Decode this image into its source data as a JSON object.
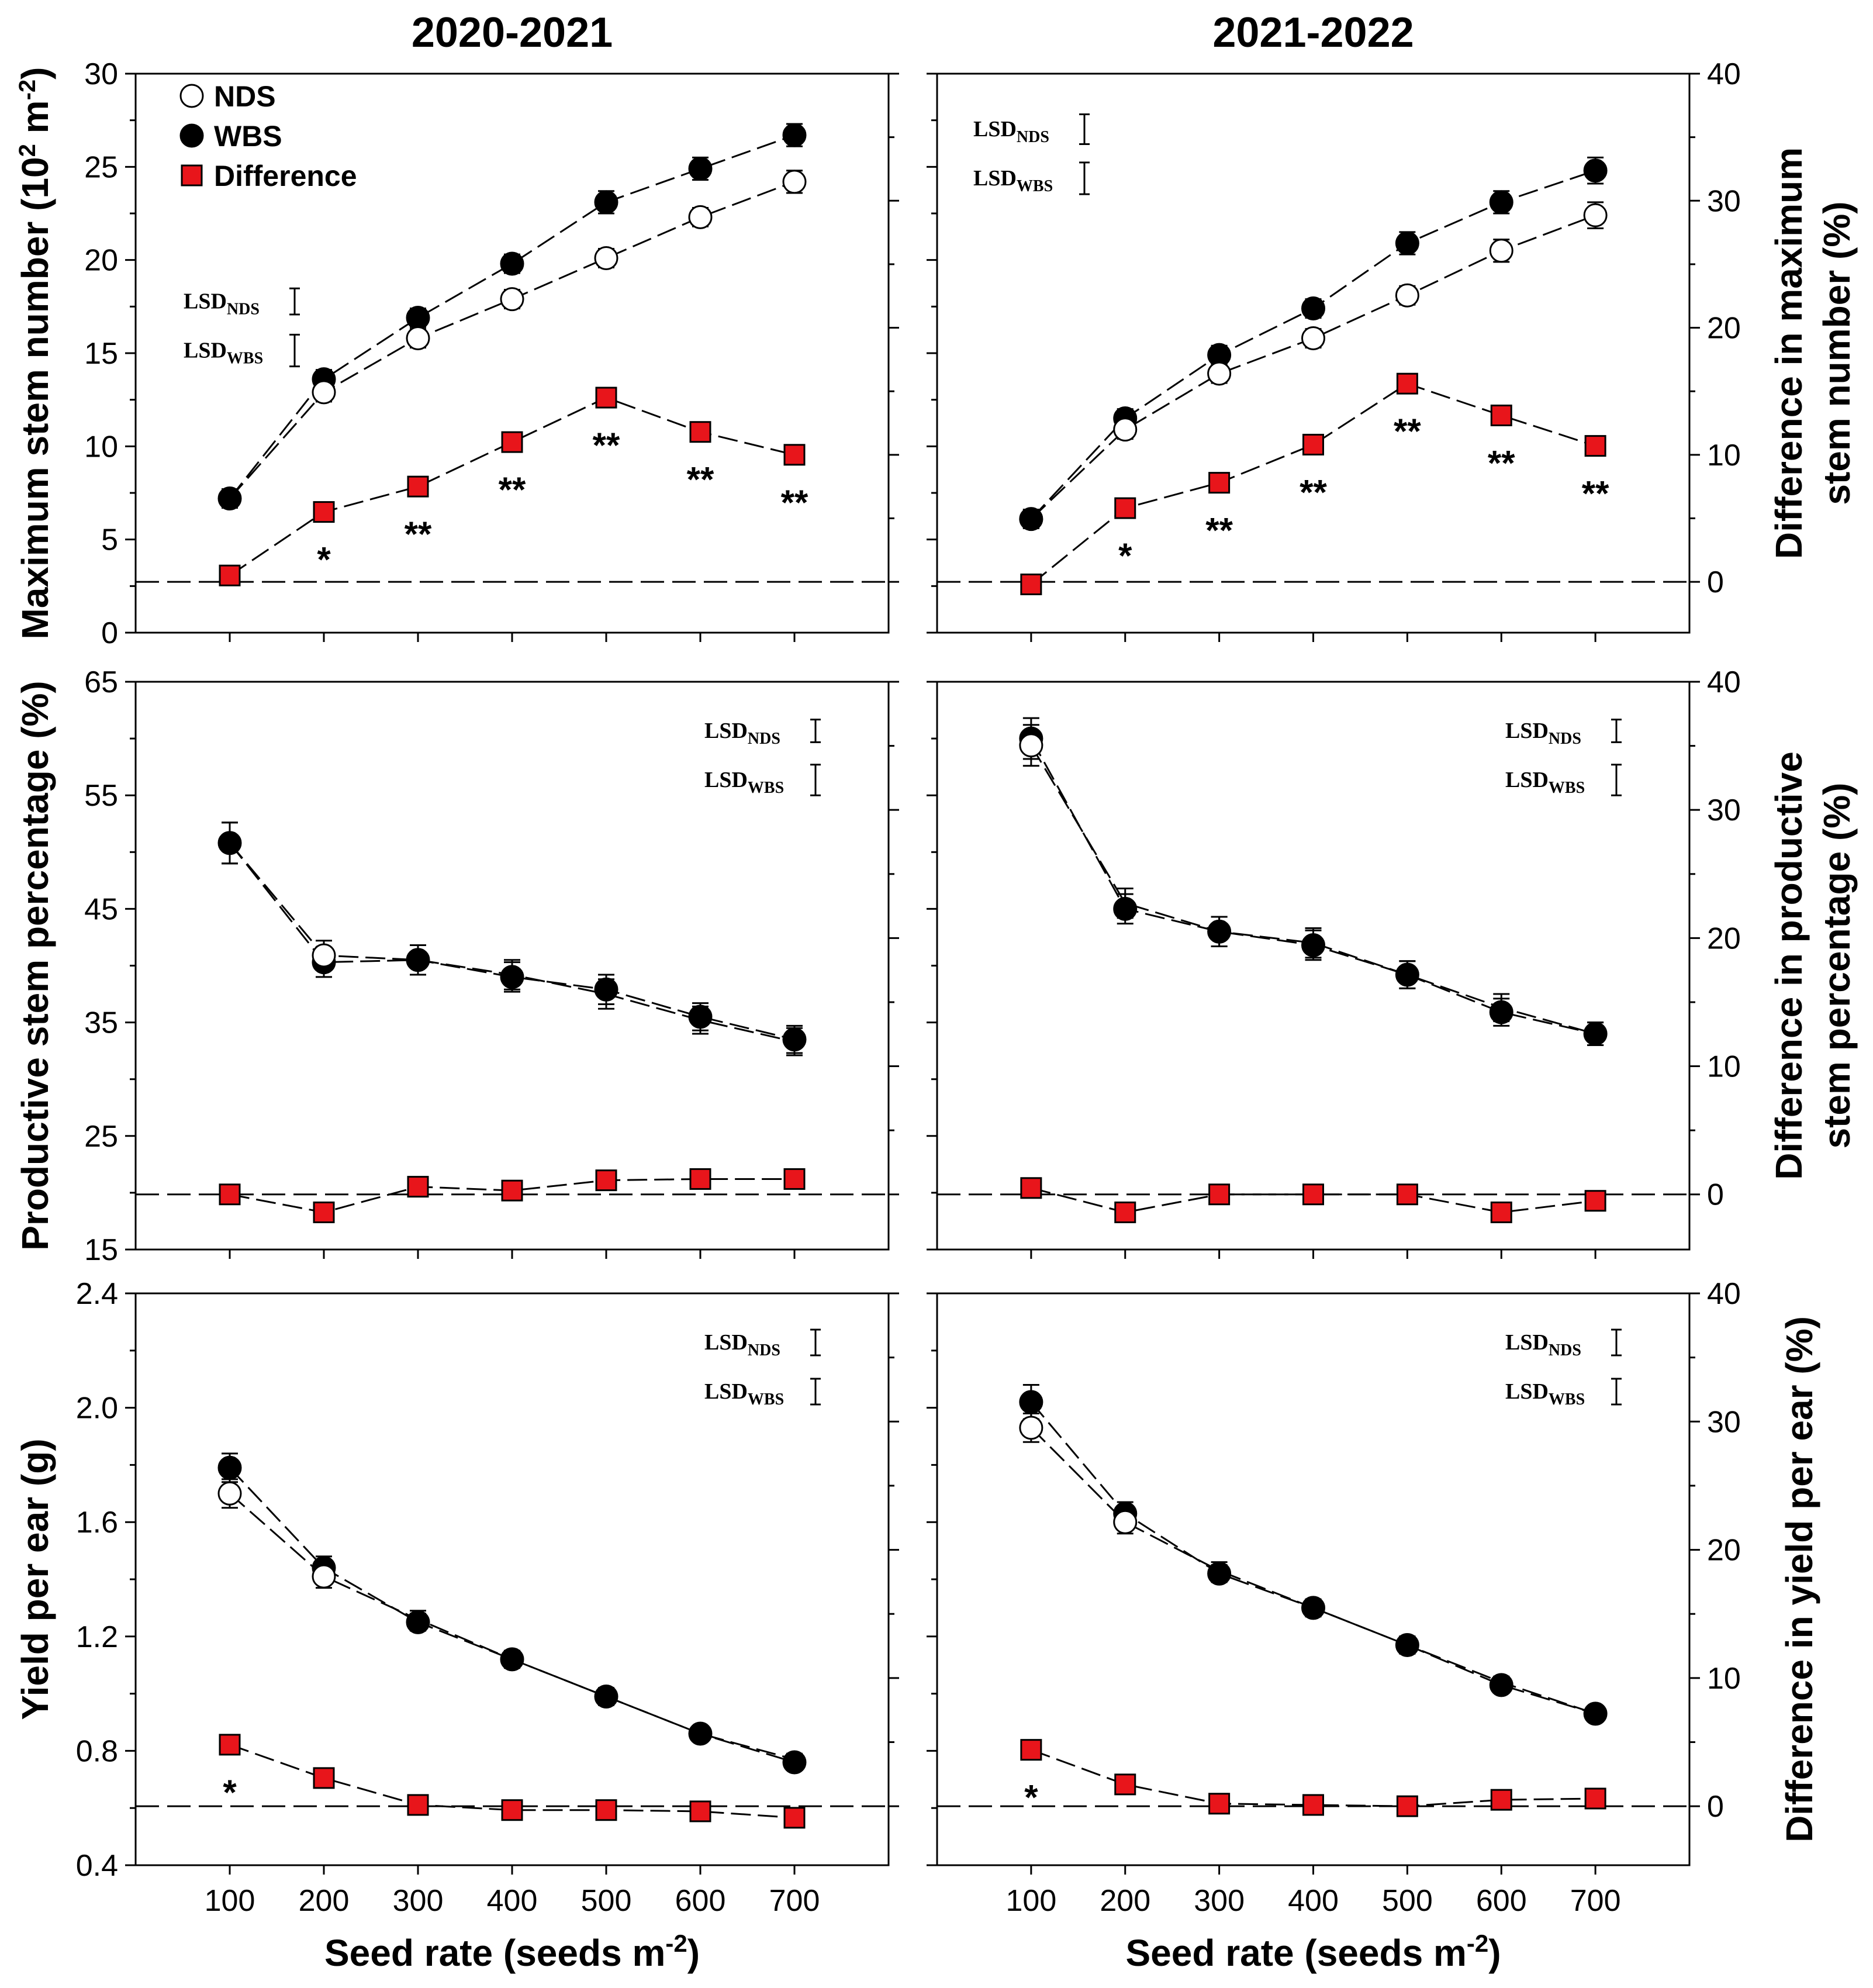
{
  "figure": {
    "column_titles": [
      "2020-2021",
      "2021-2022"
    ],
    "x_axis_label": "Seed rate (seeds m",
    "x_axis_label_sup": "-2",
    "x_axis_label_end": ")",
    "x_ticks": [
      "100",
      "200",
      "300",
      "400",
      "500",
      "600",
      "700"
    ],
    "legend": [
      {
        "label": "NDS",
        "marker": "open-circle"
      },
      {
        "label": "WBS",
        "marker": "filled-circle"
      },
      {
        "label": "Difference",
        "marker": "red-square"
      }
    ],
    "lsd_nds": {
      "main": "LSD",
      "sub": "NDS"
    },
    "lsd_wbs": {
      "main": "LSD",
      "sub": "WBS"
    },
    "colors": {
      "difference_fill": "#e8151b",
      "line": "#000000",
      "background": "#ffffff"
    }
  },
  "rows": [
    {
      "left_label": "Maximum stem number (10",
      "left_label_sup": "2",
      "left_label_mid": " m",
      "left_label_sup2": "-2",
      "left_label_end": ")",
      "right_label_line1": "Difference in maximum",
      "right_label_line2": "stem number (%)",
      "left_ticks": [
        "0",
        "5",
        "10",
        "15",
        "20",
        "25",
        "30"
      ],
      "right_ticks": [
        "0",
        "10",
        "20",
        "30",
        "40"
      ]
    },
    {
      "left_label": "Productive stem percentage (%)",
      "right_label_line1": "Difference in productive",
      "right_label_line2": "stem percentage  (%)",
      "left_ticks": [
        "15",
        "25",
        "35",
        "45",
        "55",
        "65"
      ],
      "right_ticks": [
        "0",
        "10",
        "20",
        "30",
        "40"
      ]
    },
    {
      "left_label": "Yield per ear (g)",
      "right_label_line1": "Difference in yield per ear  (%)",
      "right_label_line2": "",
      "left_ticks": [
        "0.4",
        "0.8",
        "1.2",
        "1.6",
        "2.0",
        "2.4"
      ],
      "right_ticks": [
        "0",
        "10",
        "20",
        "30",
        "40"
      ]
    }
  ],
  "chart_data": [
    {
      "type": "line",
      "id": "max-stem-2020-2021",
      "title": "2020-2021",
      "x": [
        100,
        200,
        300,
        400,
        500,
        600,
        700
      ],
      "ylim": [
        0,
        30
      ],
      "y2lim": [
        -4,
        40
      ],
      "y2_tick_values": [
        0,
        10,
        20,
        30,
        40
      ],
      "y2_zero_at_left": 3.3,
      "series": [
        {
          "name": "NDS",
          "values": [
            7.2,
            12.9,
            15.8,
            17.9,
            20.1,
            22.3,
            24.2
          ],
          "err": [
            0.5,
            0.5,
            0.5,
            0.5,
            0.5,
            0.5,
            0.6
          ]
        },
        {
          "name": "WBS",
          "values": [
            7.2,
            13.6,
            16.9,
            19.8,
            23.1,
            24.9,
            26.7
          ],
          "err": [
            0.5,
            0.5,
            0.5,
            0.5,
            0.6,
            0.6,
            0.6
          ]
        },
        {
          "name": "Difference",
          "axis": "right",
          "values": [
            0.5,
            5.5,
            7.5,
            11.0,
            14.5,
            11.8,
            10.0
          ]
        }
      ],
      "significance": [
        "",
        "*",
        "**",
        "**",
        "**",
        "**",
        "**"
      ],
      "lsd": {
        "nds": 1.4,
        "wbs": 1.7
      },
      "lsd_legend_position": "middle-left",
      "legend_position": "top-left"
    },
    {
      "type": "line",
      "id": "max-stem-2021-2022",
      "title": "2021-2022",
      "x": [
        100,
        200,
        300,
        400,
        500,
        600,
        700
      ],
      "ylim": [
        0,
        30
      ],
      "y2lim": [
        -4,
        40
      ],
      "y2_tick_values": [
        0,
        10,
        20,
        30,
        40
      ],
      "y2_zero_at_left": 3.3,
      "series": [
        {
          "name": "NDS",
          "values": [
            6.1,
            10.9,
            13.9,
            15.8,
            18.1,
            20.5,
            22.4
          ],
          "err": [
            0.5,
            0.5,
            0.5,
            0.5,
            0.5,
            0.6,
            0.7
          ]
        },
        {
          "name": "WBS",
          "values": [
            6.1,
            11.5,
            14.9,
            17.4,
            20.9,
            23.1,
            24.8
          ],
          "err": [
            0.5,
            0.5,
            0.5,
            0.5,
            0.6,
            0.6,
            0.7
          ]
        },
        {
          "name": "Difference",
          "axis": "right",
          "values": [
            -0.2,
            5.8,
            7.8,
            10.8,
            15.6,
            13.1,
            10.7
          ]
        }
      ],
      "significance": [
        "",
        "*",
        "**",
        "**",
        "**",
        "**",
        "**"
      ],
      "lsd": {
        "nds": 1.6,
        "wbs": 1.7
      },
      "lsd_legend_position": "top-left"
    },
    {
      "type": "line",
      "id": "productive-stem-2020-2021",
      "x": [
        100,
        200,
        300,
        400,
        500,
        600,
        700
      ],
      "ylim": [
        15,
        65
      ],
      "y2lim": [
        -4.3,
        40
      ],
      "y2_tick_values": [
        0,
        10,
        20,
        30,
        40
      ],
      "y2_zero_at_left": 20.5,
      "series": [
        {
          "name": "NDS",
          "values": [
            50.8,
            40.9,
            40.5,
            39.2,
            37.5,
            35.2,
            33.3
          ],
          "err": [
            1.8,
            1.3,
            1.3,
            1.3,
            1.3,
            1.2,
            1.2
          ]
        },
        {
          "name": "WBS",
          "values": [
            50.8,
            40.3,
            40.5,
            39.0,
            37.9,
            35.5,
            33.5
          ],
          "err": [
            1.8,
            1.3,
            1.3,
            1.3,
            1.3,
            1.2,
            1.2
          ]
        },
        {
          "name": "Difference",
          "axis": "right",
          "values": [
            0.0,
            -1.4,
            0.6,
            0.3,
            1.1,
            1.2,
            1.2
          ]
        }
      ],
      "significance": [
        "",
        "",
        "",
        "",
        "",
        "",
        ""
      ],
      "lsd": {
        "nds": 2.0,
        "wbs": 2.7
      },
      "lsd_legend_position": "top-right"
    },
    {
      "type": "line",
      "id": "productive-stem-2021-2022",
      "x": [
        100,
        200,
        300,
        400,
        500,
        600,
        700
      ],
      "ylim": [
        15,
        65
      ],
      "y2lim": [
        -4.3,
        40
      ],
      "y2_tick_values": [
        0,
        10,
        20,
        30,
        40
      ],
      "y2_zero_at_left": 20.5,
      "series": [
        {
          "name": "NDS",
          "values": [
            59.4,
            45.5,
            43.0,
            42.0,
            39.2,
            36.3,
            34.0
          ],
          "err": [
            1.8,
            1.3,
            1.3,
            1.3,
            1.2,
            1.2,
            1.0
          ]
        },
        {
          "name": "WBS",
          "values": [
            60.0,
            45.0,
            43.0,
            41.8,
            39.2,
            35.9,
            34.0
          ],
          "err": [
            1.8,
            1.3,
            1.3,
            1.3,
            1.2,
            1.2,
            1.0
          ]
        },
        {
          "name": "Difference",
          "axis": "right",
          "values": [
            0.5,
            -1.4,
            0.0,
            0.0,
            0.0,
            -1.4,
            -0.5
          ]
        }
      ],
      "significance": [
        "",
        "",
        "",
        "",
        "",
        "",
        ""
      ],
      "lsd": {
        "nds": 2.0,
        "wbs": 2.7
      },
      "lsd_legend_position": "top-right"
    },
    {
      "type": "line",
      "id": "yield-per-ear-2020-2021",
      "x": [
        100,
        200,
        300,
        400,
        500,
        600,
        700
      ],
      "ylim": [
        0.4,
        2.4
      ],
      "y2lim": [
        -4.6,
        40
      ],
      "y2_tick_values": [
        0,
        10,
        20,
        30,
        40
      ],
      "y2_zero_at_left": 0.623,
      "series": [
        {
          "name": "NDS",
          "values": [
            1.7,
            1.41,
            1.26,
            1.12,
            0.99,
            0.86,
            0.77
          ],
          "err": [
            0.05,
            0.04,
            0.03,
            0.03,
            0.03,
            0.02,
            0.02
          ]
        },
        {
          "name": "WBS",
          "values": [
            1.79,
            1.44,
            1.25,
            1.12,
            0.99,
            0.86,
            0.76
          ],
          "err": [
            0.05,
            0.04,
            0.03,
            0.03,
            0.03,
            0.02,
            0.02
          ]
        },
        {
          "name": "Difference",
          "axis": "right",
          "values": [
            4.8,
            2.2,
            0.1,
            -0.3,
            -0.3,
            -0.4,
            -0.9
          ]
        }
      ],
      "significance": [
        "*",
        "",
        "",
        "",
        "",
        "",
        ""
      ],
      "lsd": {
        "nds": 0.09,
        "wbs": 0.09
      },
      "lsd_legend_position": "top-right"
    },
    {
      "type": "line",
      "id": "yield-per-ear-2021-2022",
      "x": [
        100,
        200,
        300,
        400,
        500,
        600,
        700
      ],
      "ylim": [
        0.4,
        2.4
      ],
      "y2lim": [
        -4.6,
        40
      ],
      "y2_tick_values": [
        0,
        10,
        20,
        30,
        40
      ],
      "y2_zero_at_left": 0.623,
      "series": [
        {
          "name": "NDS",
          "values": [
            1.93,
            1.6,
            1.43,
            1.3,
            1.17,
            1.04,
            0.93
          ],
          "err": [
            0.05,
            0.04,
            0.03,
            0.03,
            0.03,
            0.02,
            0.02
          ]
        },
        {
          "name": "WBS",
          "values": [
            2.02,
            1.63,
            1.42,
            1.3,
            1.17,
            1.03,
            0.93
          ],
          "err": [
            0.06,
            0.04,
            0.03,
            0.03,
            0.03,
            0.02,
            0.02
          ]
        },
        {
          "name": "Difference",
          "axis": "right",
          "values": [
            4.4,
            1.7,
            0.2,
            0.1,
            0.0,
            0.5,
            0.6
          ]
        }
      ],
      "significance": [
        "*",
        "",
        "",
        "",
        "",
        "",
        ""
      ],
      "lsd": {
        "nds": 0.09,
        "wbs": 0.09
      },
      "lsd_legend_position": "top-right"
    }
  ]
}
